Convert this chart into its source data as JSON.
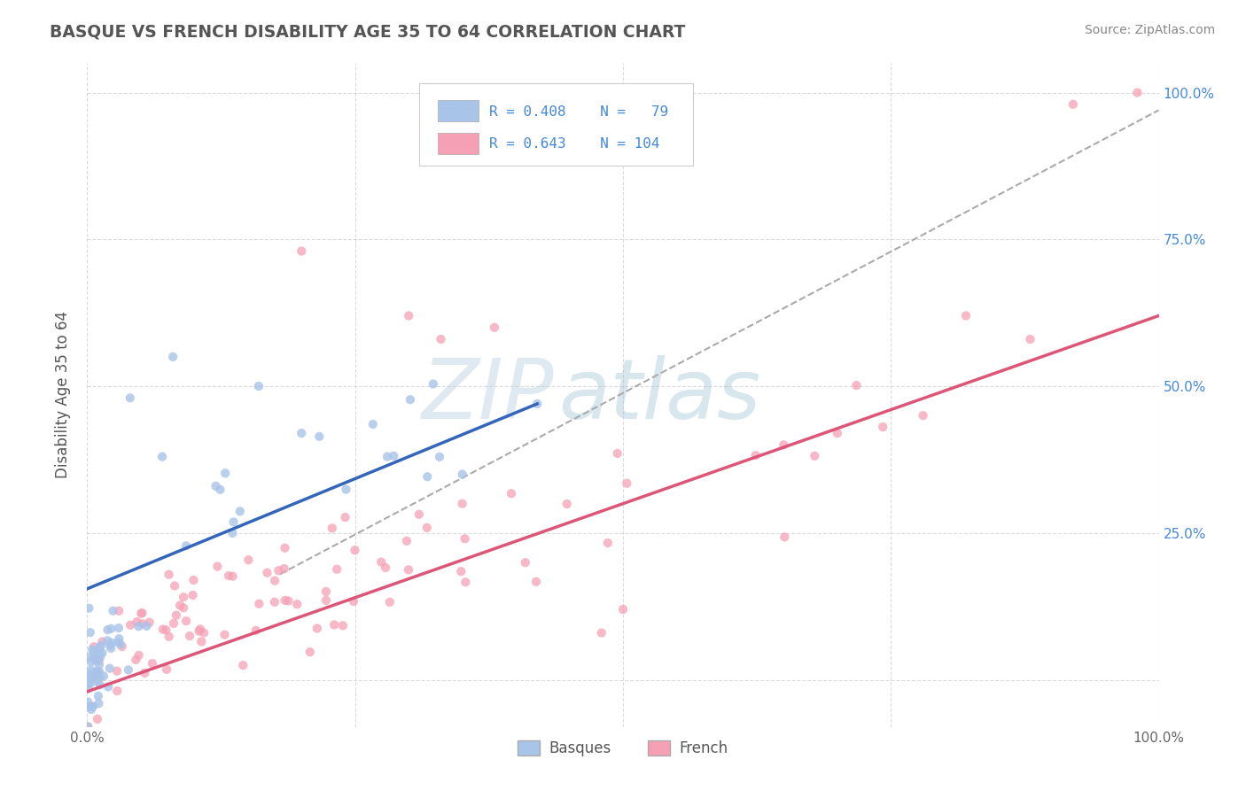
{
  "title": "BASQUE VS FRENCH DISABILITY AGE 35 TO 64 CORRELATION CHART",
  "source": "Source: ZipAtlas.com",
  "ylabel": "Disability Age 35 to 64",
  "watermark_zip": "ZIP",
  "watermark_atlas": "atlas",
  "basque_R": 0.408,
  "basque_N": 79,
  "french_R": 0.643,
  "french_N": 104,
  "basque_color": "#a8c4e8",
  "french_color": "#f5a0b5",
  "basque_line_color": "#3366bb",
  "french_line_color": "#dd5577",
  "trendline_color": "#aaaaaa",
  "bg_color": "#ffffff",
  "plot_bg_color": "#ffffff",
  "grid_color": "#cccccc",
  "title_color": "#555555",
  "legend_text_color": "#4488dd",
  "xlim": [
    0.0,
    1.0
  ],
  "ylim": [
    -0.08,
    1.05
  ],
  "x_ticks": [
    0.0,
    0.25,
    0.5,
    0.75,
    1.0
  ],
  "x_tick_labels_bottom": [
    "0.0%",
    "",
    "",
    "",
    "100.0%"
  ],
  "y_ticks": [
    0.0,
    0.25,
    0.5,
    0.75,
    1.0
  ],
  "right_tick_labels": [
    "",
    "25.0%",
    "50.0%",
    "75.0%",
    "100.0%"
  ],
  "basque_line_x": [
    0.0,
    0.42
  ],
  "basque_line_y": [
    0.155,
    0.47
  ],
  "french_line_x": [
    0.0,
    1.0
  ],
  "french_line_y": [
    -0.02,
    0.62
  ],
  "diag_line_x": [
    0.18,
    1.0
  ],
  "diag_line_y": [
    0.18,
    0.97
  ]
}
